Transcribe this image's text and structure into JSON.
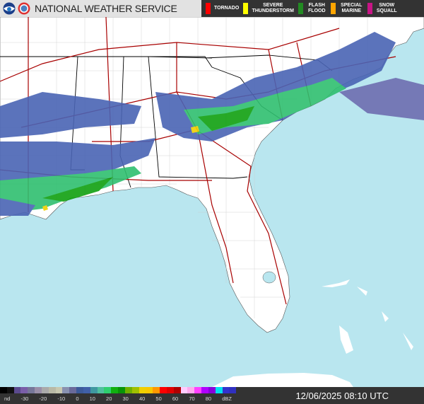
{
  "header": {
    "title": "NATIONAL WEATHER SERVICE",
    "logos": [
      "noaa-logo",
      "nws-logo"
    ]
  },
  "legend": [
    {
      "label": "TORNADO",
      "color": "#ff0000"
    },
    {
      "label": "SEVERE THUNDERSTORM",
      "color": "#ffff00"
    },
    {
      "label": "FLASH FLOOD",
      "color": "#228b22"
    },
    {
      "label": "SPECIAL MARINE",
      "color": "#ffa500"
    },
    {
      "label": "SNOW SQUALL",
      "color": "#c71585"
    }
  ],
  "scale": {
    "labels": [
      "nd",
      "-30",
      "-20",
      "-10",
      "0",
      "10",
      "20",
      "30",
      "40",
      "50",
      "60",
      "70",
      "80",
      "dBZ"
    ],
    "colors": [
      "#000000",
      "#111111",
      "#5b4a8e",
      "#7a5ea8",
      "#777799",
      "#9a8fa8",
      "#aaaaaa",
      "#b9b9a6",
      "#c8c8b0",
      "#8891b0",
      "#6a6a9a",
      "#3c5a9a",
      "#4060a8",
      "#3f98a0",
      "#4fbf9f",
      "#2fcf6f",
      "#10b010",
      "#089408",
      "#70b000",
      "#a0c000",
      "#f0d000",
      "#f8c800",
      "#ff9800",
      "#ff0000",
      "#e00000",
      "#b00000",
      "#ffccff",
      "#ffaaee",
      "#ff40ff",
      "#b000ff",
      "#8800dd",
      "#00e0f0",
      "#3333cc",
      "#3030c0"
    ],
    "unit": "dBZ"
  },
  "timestamp": "12/06/2025 08:10 UTC",
  "colors": {
    "water": "#b9e6ef",
    "land": "#ffffff",
    "highways": "#a80000",
    "state_lines": "#000000",
    "county_lines": "#bbbbbb"
  }
}
